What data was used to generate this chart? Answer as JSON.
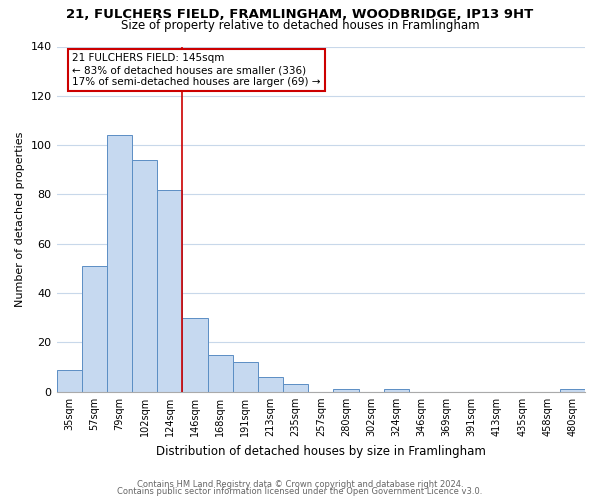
{
  "title": "21, FULCHERS FIELD, FRAMLINGHAM, WOODBRIDGE, IP13 9HT",
  "subtitle": "Size of property relative to detached houses in Framlingham",
  "xlabel": "Distribution of detached houses by size in Framlingham",
  "ylabel": "Number of detached properties",
  "bar_labels": [
    "35sqm",
    "57sqm",
    "79sqm",
    "102sqm",
    "124sqm",
    "146sqm",
    "168sqm",
    "191sqm",
    "213sqm",
    "235sqm",
    "257sqm",
    "280sqm",
    "302sqm",
    "324sqm",
    "346sqm",
    "369sqm",
    "391sqm",
    "413sqm",
    "435sqm",
    "458sqm",
    "480sqm"
  ],
  "bar_values": [
    9,
    51,
    104,
    94,
    82,
    30,
    15,
    12,
    6,
    3,
    0,
    1,
    0,
    1,
    0,
    0,
    0,
    0,
    0,
    0,
    1
  ],
  "bar_color": "#c6d9f0",
  "bar_edge_color": "#5b8ec4",
  "marker_line_color": "#cc0000",
  "annotation_title": "21 FULCHERS FIELD: 145sqm",
  "annotation_line1": "← 83% of detached houses are smaller (336)",
  "annotation_line2": "17% of semi-detached houses are larger (69) →",
  "annotation_box_color": "#ffffff",
  "annotation_box_edgecolor": "#cc0000",
  "ylim": [
    0,
    140
  ],
  "yticks": [
    0,
    20,
    40,
    60,
    80,
    100,
    120,
    140
  ],
  "footer1": "Contains HM Land Registry data © Crown copyright and database right 2024.",
  "footer2": "Contains public sector information licensed under the Open Government Licence v3.0.",
  "bg_color": "#ffffff",
  "grid_color": "#c8d8ea"
}
